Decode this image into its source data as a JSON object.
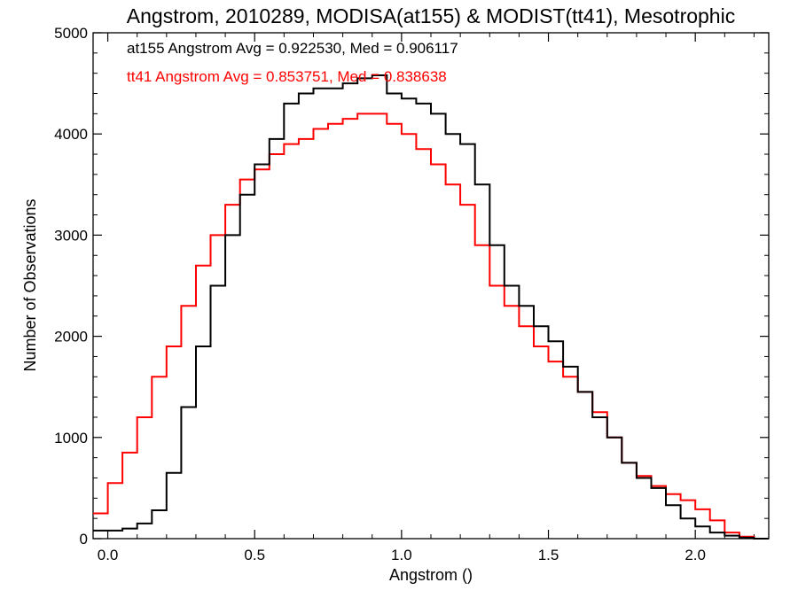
{
  "chart_data": {
    "type": "line",
    "title": "Angstrom, 2010289, MODISA(at155) & MODIST(tt41), Mesotrophic",
    "xlabel": "Angstrom ()",
    "ylabel": "Number of Observations",
    "xlim": [
      -0.05,
      2.25
    ],
    "ylim": [
      0,
      5000
    ],
    "xticks": [
      0.0,
      0.5,
      1.0,
      1.5,
      2.0
    ],
    "xtick_labels": [
      "0.0",
      "0.5",
      "1.0",
      "1.5",
      "2.0"
    ],
    "yticks": [
      0,
      1000,
      2000,
      3000,
      4000,
      5000
    ],
    "ytick_labels": [
      "0",
      "1000",
      "2000",
      "3000",
      "4000",
      "5000"
    ],
    "grid": false,
    "annotations": [
      {
        "text": "at155 Angstrom Avg = 0.922530, Med = 0.906117",
        "color": "#000000"
      },
      {
        "text": "tt41 Angstrom Avg = 0.853751, Med = 0.838638",
        "color": "#ff0000"
      }
    ],
    "series": [
      {
        "color": "#000000",
        "x": [
          -0.05,
          0.0,
          0.05,
          0.1,
          0.15,
          0.2,
          0.25,
          0.3,
          0.35,
          0.4,
          0.45,
          0.5,
          0.55,
          0.6,
          0.65,
          0.7,
          0.75,
          0.8,
          0.85,
          0.9,
          0.95,
          1.0,
          1.05,
          1.1,
          1.15,
          1.2,
          1.25,
          1.3,
          1.35,
          1.4,
          1.45,
          1.5,
          1.55,
          1.6,
          1.65,
          1.7,
          1.75,
          1.8,
          1.85,
          1.9,
          1.95,
          2.0,
          2.05,
          2.1,
          2.15,
          2.2,
          2.25
        ],
        "y": [
          80,
          80,
          100,
          150,
          280,
          650,
          1300,
          1900,
          2500,
          3000,
          3400,
          3700,
          3950,
          4300,
          4400,
          4450,
          4450,
          4500,
          4550,
          4580,
          4400,
          4350,
          4300,
          4200,
          4000,
          3900,
          3500,
          2900,
          2500,
          2300,
          2100,
          1950,
          1700,
          1450,
          1200,
          1000,
          750,
          600,
          500,
          330,
          200,
          120,
          60,
          30,
          10,
          0,
          0
        ]
      },
      {
        "color": "#ff0000",
        "x": [
          -0.05,
          0.0,
          0.05,
          0.1,
          0.15,
          0.2,
          0.25,
          0.3,
          0.35,
          0.4,
          0.45,
          0.5,
          0.55,
          0.6,
          0.65,
          0.7,
          0.75,
          0.8,
          0.85,
          0.9,
          0.95,
          1.0,
          1.05,
          1.1,
          1.15,
          1.2,
          1.25,
          1.3,
          1.35,
          1.4,
          1.45,
          1.5,
          1.55,
          1.6,
          1.65,
          1.7,
          1.75,
          1.8,
          1.85,
          1.9,
          1.95,
          2.0,
          2.05,
          2.1,
          2.15,
          2.2,
          2.25
        ],
        "y": [
          250,
          550,
          850,
          1200,
          1600,
          1900,
          2300,
          2700,
          3000,
          3300,
          3550,
          3650,
          3800,
          3900,
          3950,
          4050,
          4100,
          4150,
          4200,
          4200,
          4100,
          4000,
          3850,
          3700,
          3500,
          3300,
          2900,
          2500,
          2300,
          2100,
          1900,
          1750,
          1600,
          1450,
          1250,
          1000,
          750,
          620,
          520,
          440,
          380,
          290,
          180,
          60,
          20,
          0,
          0
        ]
      }
    ]
  }
}
